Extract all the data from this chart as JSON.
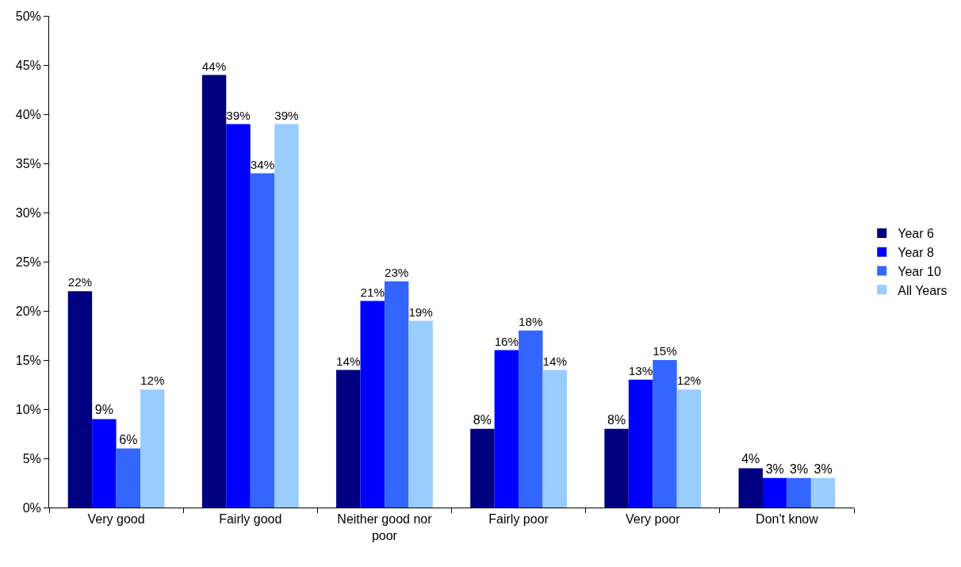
{
  "chart_data": {
    "type": "bar",
    "categories": [
      "Very good",
      "Fairly good",
      "Neither good nor poor",
      "Fairly poor",
      "Very poor",
      "Don't know"
    ],
    "series": [
      {
        "name": "Year 6",
        "color": "#000080",
        "values": [
          22,
          44,
          14,
          8,
          8,
          4
        ],
        "value_labels": [
          "22%",
          "44%",
          "14%",
          "8%",
          "8%",
          "4%"
        ]
      },
      {
        "name": "Year 8",
        "color": "#0000ff",
        "values": [
          9,
          39,
          21,
          16,
          13,
          3
        ],
        "value_labels": [
          "9%",
          "39%",
          "21%",
          "16%",
          "13%",
          "3%"
        ]
      },
      {
        "name": "Year 10",
        "color": "#3366ff",
        "values": [
          6,
          34,
          23,
          18,
          15,
          3
        ],
        "value_labels": [
          "6%",
          "34%",
          "23%",
          "18%",
          "15%",
          "3%"
        ]
      },
      {
        "name": "All Years",
        "color": "#99ccff",
        "values": [
          12,
          39,
          19,
          14,
          12,
          3
        ],
        "value_labels": [
          "12%",
          "39%",
          "19%",
          "14%",
          "12%",
          "3%"
        ]
      }
    ],
    "ylim": [
      0,
      50
    ],
    "yticks": [
      {
        "value": 0,
        "label": "0%"
      },
      {
        "value": 5,
        "label": "5%"
      },
      {
        "value": 10,
        "label": "10%"
      },
      {
        "value": 15,
        "label": "15%"
      },
      {
        "value": 20,
        "label": "20%"
      },
      {
        "value": 25,
        "label": "25%"
      },
      {
        "value": 30,
        "label": "30%"
      },
      {
        "value": 35,
        "label": "35%"
      },
      {
        "value": 40,
        "label": "40%"
      },
      {
        "value": 45,
        "label": "45%"
      },
      {
        "value": 50,
        "label": "50%"
      }
    ],
    "grid": false,
    "legend": "right"
  }
}
